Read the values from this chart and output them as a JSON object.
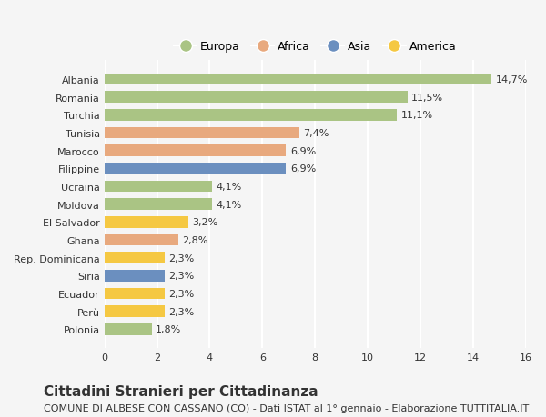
{
  "countries": [
    "Albania",
    "Romania",
    "Turchia",
    "Tunisia",
    "Marocco",
    "Filippine",
    "Ucraina",
    "Moldova",
    "El Salvador",
    "Ghana",
    "Rep. Dominicana",
    "Siria",
    "Ecuador",
    "Perù",
    "Polonia"
  ],
  "values": [
    14.7,
    11.5,
    11.1,
    7.4,
    6.9,
    6.9,
    4.1,
    4.1,
    3.2,
    2.8,
    2.3,
    2.3,
    2.3,
    2.3,
    1.8
  ],
  "labels": [
    "14,7%",
    "11,5%",
    "11,1%",
    "7,4%",
    "6,9%",
    "6,9%",
    "4,1%",
    "4,1%",
    "3,2%",
    "2,8%",
    "2,3%",
    "2,3%",
    "2,3%",
    "2,3%",
    "1,8%"
  ],
  "continents": [
    "Europa",
    "Europa",
    "Europa",
    "Africa",
    "Africa",
    "Asia",
    "Europa",
    "Europa",
    "America",
    "Africa",
    "America",
    "Asia",
    "America",
    "America",
    "Europa"
  ],
  "colors": {
    "Europa": "#aac484",
    "Africa": "#e8a97e",
    "Asia": "#6b8fbf",
    "America": "#f5c842"
  },
  "legend_order": [
    "Europa",
    "Africa",
    "Asia",
    "America"
  ],
  "xlim": [
    0,
    16
  ],
  "xticks": [
    0,
    2,
    4,
    6,
    8,
    10,
    12,
    14,
    16
  ],
  "title": "Cittadini Stranieri per Cittadinanza",
  "subtitle": "COMUNE DI ALBESE CON CASSANO (CO) - Dati ISTAT al 1° gennaio - Elaborazione TUTTITALIA.IT",
  "bg_color": "#f5f5f5",
  "grid_color": "#ffffff",
  "text_color": "#333333",
  "title_fontsize": 11,
  "subtitle_fontsize": 8,
  "label_fontsize": 8,
  "tick_fontsize": 8,
  "legend_fontsize": 9
}
